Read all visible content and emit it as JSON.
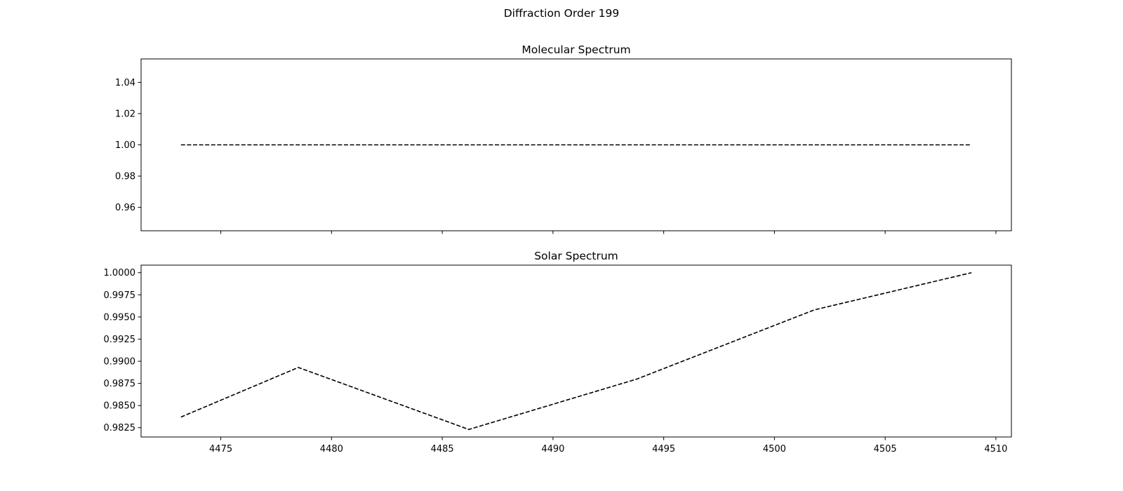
{
  "figure_title": "Diffraction Order 199",
  "chart_data": [
    {
      "type": "line",
      "title": "Molecular Spectrum",
      "xlabel": "",
      "ylabel": "",
      "xlim": [
        4471.4,
        4510.7
      ],
      "ylim": [
        0.945,
        1.055
      ],
      "yticks": [
        0.96,
        0.98,
        1.0,
        1.02,
        1.04
      ],
      "ytick_labels": [
        "0.96",
        "0.98",
        "1.00",
        "1.02",
        "1.04"
      ],
      "xticks": [
        4475,
        4480,
        4485,
        4490,
        4495,
        4500,
        4505,
        4510
      ],
      "xtick_labels": [],
      "grid": false,
      "series": [
        {
          "color": "#000000",
          "linestyle": "dashed",
          "x": [
            4473.2,
            4508.9
          ],
          "y": [
            1.0,
            1.0
          ]
        }
      ]
    },
    {
      "type": "line",
      "title": "Solar Spectrum",
      "xlabel": "",
      "ylabel": "",
      "xlim": [
        4471.4,
        4510.7
      ],
      "ylim": [
        0.98145,
        1.00085
      ],
      "yticks": [
        0.9825,
        0.985,
        0.9875,
        0.99,
        0.9925,
        0.995,
        0.9975,
        1.0
      ],
      "ytick_labels": [
        "0.9825",
        "0.9850",
        "0.9875",
        "0.9900",
        "0.9925",
        "0.9950",
        "0.9975",
        "1.0000"
      ],
      "xticks": [
        4475,
        4480,
        4485,
        4490,
        4495,
        4500,
        4505,
        4510
      ],
      "xtick_labels": [
        "4475",
        "4480",
        "4485",
        "4490",
        "4495",
        "4500",
        "4505",
        "4510"
      ],
      "grid": false,
      "series": [
        {
          "color": "#000000",
          "linestyle": "dashed",
          "x": [
            4473.2,
            4478.5,
            4486.2,
            4493.8,
            4501.8,
            4508.9
          ],
          "y": [
            0.9837,
            0.9893,
            0.9823,
            0.988,
            0.9958,
            1.0
          ]
        }
      ]
    }
  ]
}
